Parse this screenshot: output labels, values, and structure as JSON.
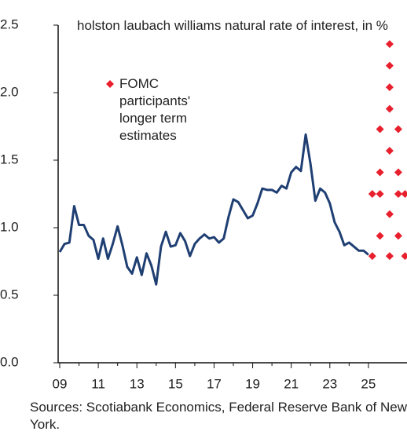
{
  "chart_data": {
    "type": "line",
    "title": "holston laubach williams natural rate of interest, in %",
    "source": "Sources: Scotiabank Economics, Federal Reserve Bank of New York.",
    "xlim": [
      2009,
      2027
    ],
    "ylim": [
      0,
      2.5
    ],
    "xticks": [
      {
        "value": 2009,
        "label": "09"
      },
      {
        "value": 2011,
        "label": "11"
      },
      {
        "value": 2013,
        "label": "13"
      },
      {
        "value": 2015,
        "label": "15"
      },
      {
        "value": 2017,
        "label": "17"
      },
      {
        "value": 2019,
        "label": "19"
      },
      {
        "value": 2021,
        "label": "21"
      },
      {
        "value": 2023,
        "label": "23"
      },
      {
        "value": 2025,
        "label": "25"
      }
    ],
    "yticks": [
      {
        "value": 0,
        "label": "0.0"
      },
      0.5,
      {
        "value": 1,
        "label": "1.0"
      },
      1.5,
      {
        "value": 2,
        "label": "2.0"
      },
      2.5
    ],
    "series": [
      {
        "name": "holston laubach williams natural rate of interest",
        "type": "line",
        "color": "#1f3f73",
        "x": [
          2009,
          2009.25,
          2009.5,
          2009.75,
          2010,
          2010.25,
          2010.5,
          2010.75,
          2011,
          2011.25,
          2011.5,
          2011.75,
          2012,
          2012.25,
          2012.5,
          2012.75,
          2013,
          2013.25,
          2013.5,
          2013.75,
          2014,
          2014.25,
          2014.5,
          2014.75,
          2015,
          2015.25,
          2015.5,
          2015.75,
          2016,
          2016.25,
          2016.5,
          2016.75,
          2017,
          2017.25,
          2017.5,
          2017.75,
          2018,
          2018.25,
          2018.5,
          2018.75,
          2019,
          2019.25,
          2019.5,
          2019.75,
          2020,
          2020.25,
          2020.5,
          2020.75,
          2021,
          2021.25,
          2021.5,
          2021.75,
          2022,
          2022.25,
          2022.5,
          2022.75,
          2023,
          2023.25,
          2023.5,
          2023.75,
          2024,
          2024.25,
          2024.5,
          2024.75,
          2025
        ],
        "values": [
          0.82,
          0.88,
          0.89,
          1.16,
          1.02,
          1.02,
          0.94,
          0.91,
          0.77,
          0.92,
          0.77,
          0.88,
          1.01,
          0.87,
          0.71,
          0.66,
          0.78,
          0.65,
          0.81,
          0.72,
          0.58,
          0.86,
          0.97,
          0.86,
          0.87,
          0.96,
          0.9,
          0.79,
          0.88,
          0.92,
          0.95,
          0.92,
          0.93,
          0.89,
          0.92,
          1.08,
          1.21,
          1.19,
          1.13,
          1.07,
          1.09,
          1.18,
          1.29,
          1.28,
          1.28,
          1.26,
          1.31,
          1.29,
          1.41,
          1.45,
          1.42,
          1.69,
          1.47,
          1.2,
          1.29,
          1.26,
          1.18,
          1.04,
          0.97,
          0.87,
          0.89,
          0.86,
          0.83,
          0.83,
          0.8
        ]
      },
      {
        "name": "FOMC participants' longer term estimates",
        "type": "scatter",
        "color": "#e8202e",
        "x": [
          2025.2,
          2025.2,
          2025.6,
          2025.6,
          2025.6,
          2025.6,
          2026.1,
          2026.1,
          2026.1,
          2026.1,
          2026.1,
          2026.1,
          2026.1,
          2026.55,
          2026.55,
          2026.55,
          2026.55,
          2026.9,
          2026.9
        ],
        "values": [
          0.79,
          1.25,
          0.94,
          1.25,
          1.41,
          1.73,
          0.79,
          1.1,
          1.57,
          1.88,
          2.04,
          2.2,
          2.36,
          0.94,
          1.25,
          1.41,
          1.73,
          0.79,
          1.25
        ]
      }
    ]
  }
}
